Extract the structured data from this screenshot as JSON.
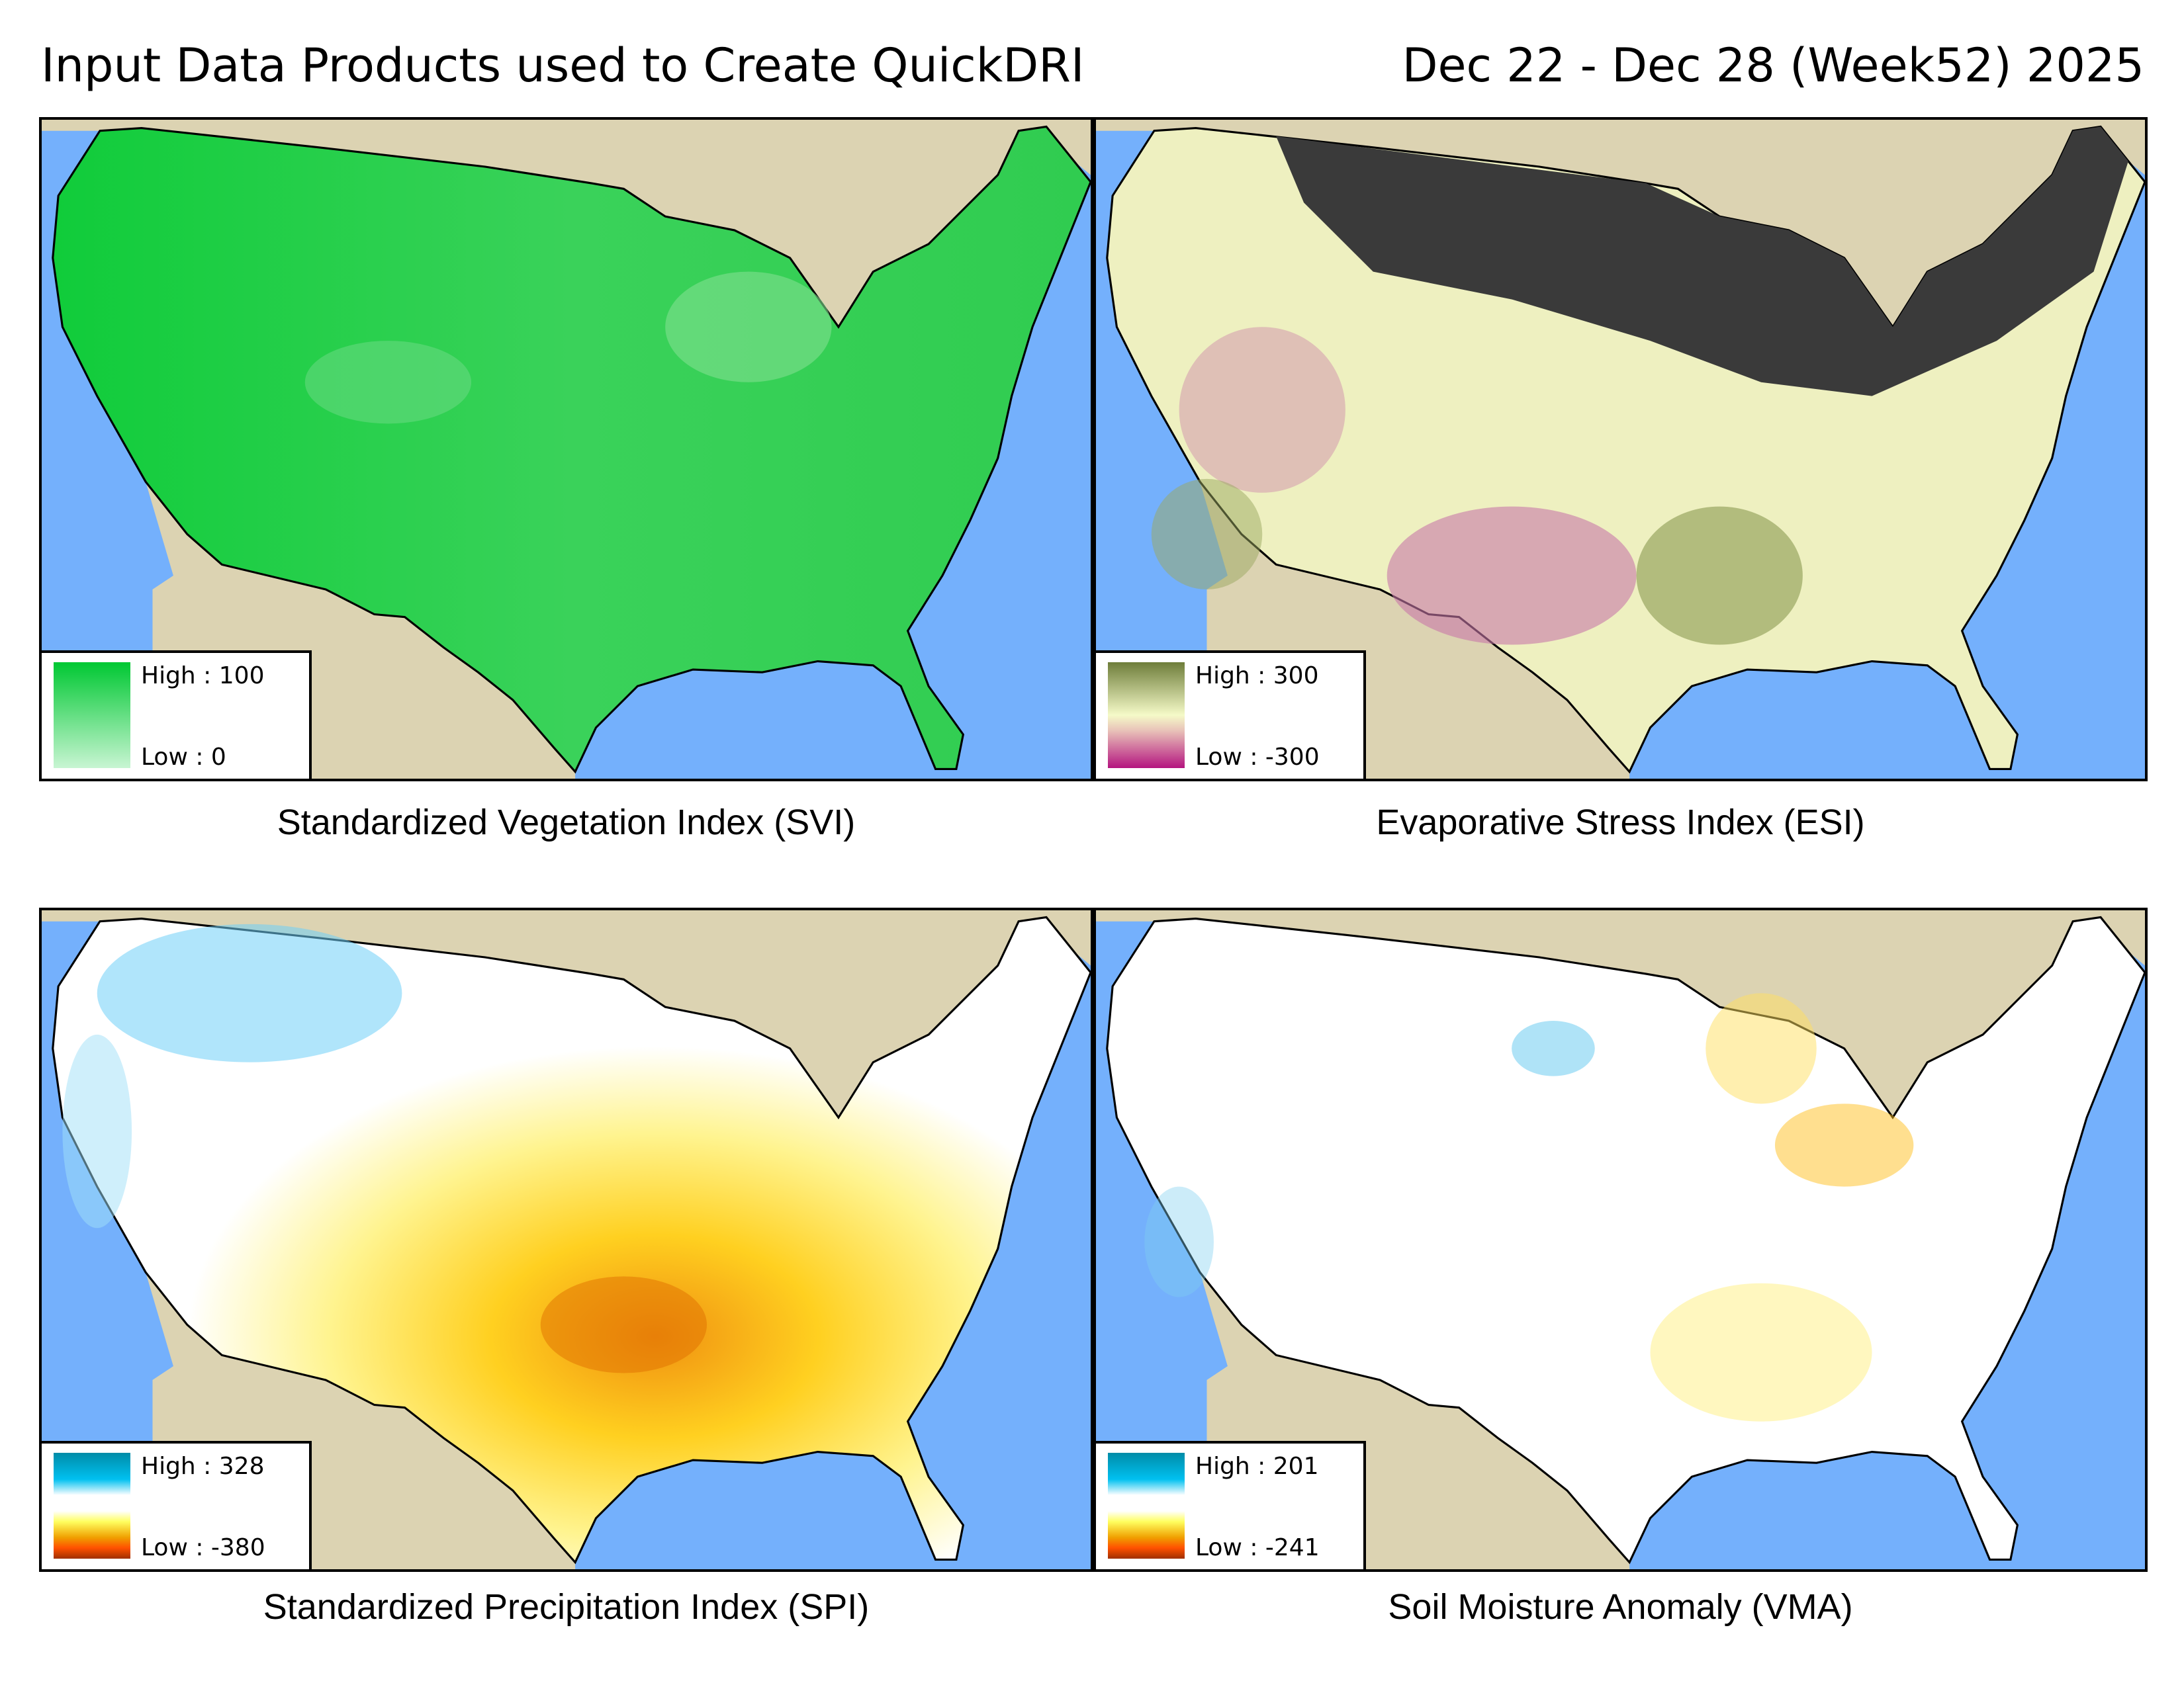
{
  "header": {
    "title": "Input Data Products used to Create QuickDRI",
    "dates": "Dec 22 - Dec 28 (Week52) 2025"
  },
  "panels": [
    {
      "caption": "Standardized Vegetation Index (SVI)",
      "legend": {
        "high": "High : 100",
        "low": "Low : 0",
        "colors": [
          "#00c832",
          "#c8f5d2"
        ]
      }
    },
    {
      "caption": "Evaporative Stress Index (ESI)",
      "legend": {
        "high": "High : 300",
        "low": "Low : -300",
        "colors": [
          "#6e7d3a",
          "#f5fac8",
          "#e8c0b8",
          "#b4147f"
        ]
      }
    },
    {
      "caption": "Standardized Precipitation Index (SPI)",
      "legend": {
        "high": "High : 328",
        "low": "Low : -380",
        "colors": [
          "#008ca8",
          "#00c0f0",
          "#ffffff",
          "#ffffff",
          "#ffff60",
          "#f0a000",
          "#ff5000",
          "#a03000"
        ]
      }
    },
    {
      "caption": "Soil Moisture Anomaly (VMA)",
      "legend": {
        "high": "High : 201",
        "low": "Low : -241",
        "colors": [
          "#008ca8",
          "#00c0f0",
          "#ffffff",
          "#ffffff",
          "#ffff60",
          "#f0a000",
          "#ff5000",
          "#a03000"
        ]
      }
    }
  ]
}
